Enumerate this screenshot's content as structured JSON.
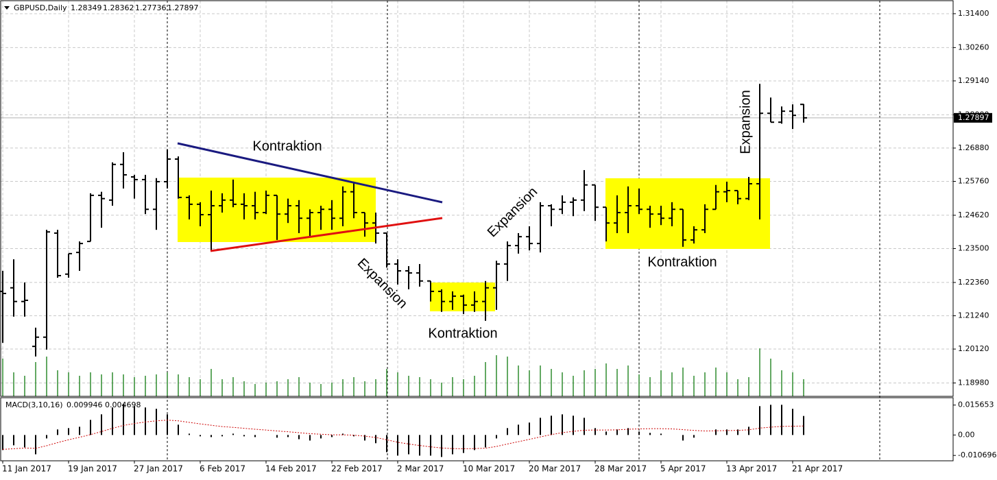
{
  "chart_data": {
    "type": "ohlc",
    "title": "GBPUSD,Daily",
    "color": "#000000",
    "categories": [
      "11 Jan 2017",
      null,
      null,
      null,
      null,
      null,
      "19 Jan 2017",
      null,
      null,
      null,
      null,
      null,
      "27 Jan 2017",
      null,
      null,
      null,
      null,
      null,
      "6 Feb 2017",
      null,
      null,
      null,
      null,
      null,
      "14 Feb 2017",
      null,
      null,
      null,
      null,
      null,
      "22 Feb 2017",
      null,
      null,
      null,
      null,
      null,
      "2 Mar 2017",
      null,
      null,
      null,
      null,
      null,
      "10 Mar 2017",
      null,
      null,
      null,
      null,
      null,
      "20 Mar 2017",
      null,
      null,
      null,
      null,
      null,
      "28 Mar 2017",
      null,
      null,
      null,
      null,
      null,
      "5 Apr 2017",
      null,
      null,
      null,
      null,
      null,
      "13 Apr 2017",
      null,
      null,
      null,
      null,
      null,
      "21 Apr 2017",
      null
    ],
    "open": [
      1.2206,
      1.2218,
      1.2172,
      1.2021,
      1.2052,
      1.2402,
      1.2264,
      1.2337,
      1.2374,
      1.2529,
      1.2513,
      1.2633,
      1.2591,
      1.2582,
      1.2482,
      1.2575,
      1.2651,
      1.2522,
      1.2499,
      1.2464,
      1.2494,
      1.2513,
      1.2499,
      1.2494,
      1.2471,
      1.2529,
      1.2466,
      1.2494,
      1.2452,
      1.2471,
      1.2482,
      1.2452,
      1.2541,
      1.2471,
      1.2436,
      1.2402,
      1.2298,
      1.2275,
      1.2268,
      1.2241,
      1.2206,
      1.2172,
      1.219,
      1.216,
      1.2172,
      1.2218,
      1.2298,
      1.236,
      1.239,
      1.2367,
      1.2494,
      1.2482,
      1.2506,
      1.2513,
      1.2564,
      1.2489,
      1.2436,
      1.2471,
      1.2494,
      1.2482,
      1.2466,
      1.2452,
      1.2482,
      1.2379,
      1.2413,
      1.2482,
      1.2541,
      1.2545,
      1.2518,
      1.2568,
      1.2805,
      1.2775,
      1.2812,
      1.28349
    ],
    "high": [
      1.2275,
      1.2314,
      1.2236,
      1.2084,
      1.2413,
      1.2413,
      1.2333,
      1.2374,
      1.2536,
      1.2541,
      1.264,
      1.2674,
      1.2598,
      1.2598,
      1.2587,
      1.2683,
      1.266,
      1.2529,
      1.2506,
      1.2545,
      1.2536,
      1.2582,
      1.2536,
      1.2541,
      1.2545,
      1.2529,
      1.2518,
      1.2513,
      1.2482,
      1.2494,
      1.2513,
      1.2559,
      1.2575,
      1.2471,
      1.2471,
      1.2402,
      1.2314,
      1.2291,
      1.2298,
      1.2241,
      1.2213,
      1.2206,
      1.2195,
      1.2206,
      1.2241,
      1.2309,
      1.2374,
      1.2402,
      1.2425,
      1.2506,
      1.2499,
      1.2529,
      1.2522,
      1.2614,
      1.2564,
      1.2489,
      1.2529,
      1.2559,
      1.2552,
      1.2494,
      1.2494,
      1.2506,
      1.2482,
      1.2425,
      1.2499,
      1.2564,
      1.2575,
      1.2545,
      1.2591,
      1.2904,
      1.2858,
      1.2828,
      1.2835,
      1.28362
    ],
    "low": [
      1.2033,
      1.2121,
      1.2121,
      1.1987,
      1.201,
      1.2252,
      1.2252,
      1.2275,
      1.2374,
      1.242,
      1.2494,
      1.2552,
      1.2518,
      1.2466,
      1.2413,
      1.2552,
      1.2518,
      1.2448,
      1.2425,
      1.2344,
      1.2471,
      1.2489,
      1.2448,
      1.2448,
      1.2466,
      1.2379,
      1.2436,
      1.2402,
      1.239,
      1.2413,
      1.2413,
      1.2425,
      1.2452,
      1.239,
      1.2367,
      1.2286,
      1.2229,
      1.2213,
      1.2222,
      1.2172,
      1.2137,
      1.2144,
      1.213,
      1.2137,
      1.2107,
      1.2144,
      1.2241,
      1.2333,
      1.2344,
      1.2337,
      1.2425,
      1.2466,
      1.2459,
      1.2476,
      1.2443,
      1.2374,
      1.2402,
      1.2402,
      1.2466,
      1.242,
      1.2429,
      1.2425,
      1.2356,
      1.2367,
      1.2402,
      1.2482,
      1.2506,
      1.2499,
      1.2513,
      1.2448,
      1.2775,
      1.277,
      1.2752,
      1.27736
    ],
    "close": [
      1.2199,
      1.2172,
      1.2176,
      1.2052,
      1.2406,
      1.2259,
      1.2333,
      1.2367,
      1.2529,
      1.2518,
      1.2633,
      1.2598,
      1.2582,
      1.2482,
      1.2575,
      1.2651,
      1.2522,
      1.2499,
      1.2464,
      1.2494,
      1.2513,
      1.2499,
      1.2494,
      1.2471,
      1.2529,
      1.2466,
      1.2494,
      1.2452,
      1.2471,
      1.2482,
      1.2452,
      1.2541,
      1.2471,
      1.2436,
      1.2402,
      1.2298,
      1.2275,
      1.2268,
      1.2241,
      1.2206,
      1.2172,
      1.219,
      1.216,
      1.2172,
      1.2218,
      1.2298,
      1.236,
      1.239,
      1.2367,
      1.2494,
      1.2482,
      1.2506,
      1.2513,
      1.2564,
      1.2489,
      1.2436,
      1.2471,
      1.2494,
      1.2482,
      1.2466,
      1.2452,
      1.2482,
      1.2379,
      1.2413,
      1.2482,
      1.2541,
      1.2545,
      1.2518,
      1.2568,
      1.2805,
      1.2775,
      1.2812,
      1.2798,
      1.27897
    ],
    "ylim": [
      1.1853,
      1.3186
    ],
    "yticks": [
      {
        "value": 1.314,
        "label": "1.31400"
      },
      {
        "value": 1.3026,
        "label": "1.30260"
      },
      {
        "value": 1.2914,
        "label": "1.29140"
      },
      {
        "value": 1.28,
        "label": "1.28000"
      },
      {
        "value": 1.2688,
        "label": "1.26880"
      },
      {
        "value": 1.2576,
        "label": "1.25760"
      },
      {
        "value": 1.2462,
        "label": "1.24620"
      },
      {
        "value": 1.235,
        "label": "1.23500"
      },
      {
        "value": 1.2236,
        "label": "1.22360"
      },
      {
        "value": 1.2124,
        "label": "1.21240"
      },
      {
        "value": 1.2012,
        "label": "1.20120"
      },
      {
        "value": 1.1898,
        "label": "1.18980"
      }
    ],
    "grid": true,
    "volume": {
      "color": "#2e8b2e",
      "vlim": [
        0,
        100
      ],
      "values": [
        55,
        35,
        30,
        50,
        58,
        38,
        35,
        30,
        35,
        32,
        35,
        32,
        28,
        30,
        32,
        35,
        32,
        28,
        25,
        40,
        25,
        28,
        22,
        18,
        20,
        22,
        25,
        28,
        20,
        18,
        20,
        25,
        28,
        22,
        25,
        40,
        35,
        30,
        28,
        25,
        20,
        28,
        25,
        30,
        50,
        60,
        58,
        45,
        38,
        45,
        40,
        35,
        30,
        38,
        40,
        48,
        40,
        45,
        32,
        28,
        38,
        35,
        42,
        30,
        35,
        42,
        35,
        25,
        28,
        70,
        55,
        38,
        35,
        25
      ]
    },
    "macd": {
      "title": "MACD(3,10,16)",
      "color": "#000000",
      "values": [
        -0.0079,
        -0.0054,
        -0.0065,
        -0.0101,
        -0.0018,
        0.0029,
        0.0036,
        0.0043,
        0.0079,
        0.0108,
        0.0144,
        0.0162,
        0.0151,
        0.0144,
        0.0137,
        0.0108,
        0.0054,
        0.0007,
        -0.0007,
        -0.0011,
        -0.0007,
        0.0007,
        -0.0007,
        -0.0011,
        0,
        -0.0014,
        -0.0011,
        -0.0022,
        -0.0029,
        -0.0018,
        -0.0011,
        0.0007,
        -0.0007,
        -0.0029,
        -0.0043,
        -0.009,
        -0.0108,
        -0.0101,
        -0.0108,
        -0.0108,
        -0.0115,
        -0.0101,
        -0.0094,
        -0.0079,
        -0.0065,
        -0.0018,
        0.0036,
        0.0054,
        0.0065,
        0.009,
        0.0101,
        0.0108,
        0.0101,
        0.009,
        0.0036,
        0.0018,
        0.0029,
        0.0036,
        0.0018,
        0.0011,
        0.0007,
        0,
        -0.0029,
        -0.0014,
        0,
        0.0029,
        0.0029,
        0.0029,
        0.0043,
        0.0151,
        0.0158,
        0.0158,
        0.0137,
        0.009946
      ],
      "signal": {
        "color": "#cc0000",
        "values": [
          -0.0075,
          -0.0072,
          -0.0068,
          -0.007,
          -0.0056,
          -0.004,
          -0.0025,
          -0.0012,
          0.0002,
          0.0018,
          0.0035,
          0.005,
          0.006,
          0.0068,
          0.0074,
          0.0078,
          0.0074,
          0.0066,
          0.0058,
          0.0051,
          0.0044,
          0.004,
          0.0035,
          0.003,
          0.0026,
          0.0021,
          0.0017,
          0.0012,
          0.0007,
          0.0004,
          0.0001,
          0.0001,
          -0.0001,
          -0.0006,
          -0.0013,
          -0.0025,
          -0.0038,
          -0.0047,
          -0.0055,
          -0.0062,
          -0.0068,
          -0.0071,
          -0.0072,
          -0.0071,
          -0.0069,
          -0.006,
          -0.0047,
          -0.0035,
          -0.0023,
          -0.001,
          0.0002,
          0.0012,
          0.0019,
          0.0025,
          0.0026,
          0.0026,
          0.0027,
          0.003,
          0.0032,
          0.0033,
          0.0033,
          0.0032,
          0.0028,
          0.0024,
          0.0021,
          0.0022,
          0.0023,
          0.0024,
          0.0027,
          0.0036,
          0.0041,
          0.0045,
          0.0046,
          0.004698
        ]
      },
      "ylim": [
        -0.0135,
        0.0195
      ],
      "yticks": [
        0.015653,
        {
          "value": 0,
          "label": "0.00"
        },
        -0.010696
      ]
    },
    "annotations": [
      "Kontraktion",
      "Expansion",
      "Kontraktion",
      "Expansion",
      "Kontraktion",
      "Expansion"
    ]
  }
}
